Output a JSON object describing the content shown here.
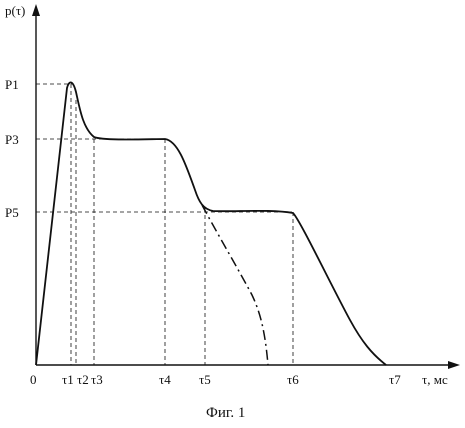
{
  "figure": {
    "y_axis_label": "p(τ)",
    "x_axis_label": "τ, мс",
    "origin_label": "0",
    "caption": "Фиг. 1"
  },
  "chart_data": {
    "type": "line",
    "title": "",
    "xlabel": "τ, мс",
    "ylabel": "p(τ)",
    "grid": false,
    "x_tick_labels": [
      "τ1",
      "τ2",
      "τ3",
      "τ4",
      "τ5",
      "τ6",
      "τ7"
    ],
    "y_tick_labels": [
      "P1",
      "P3",
      "P5"
    ],
    "series": [
      {
        "style": "solid",
        "x": [
          0,
          34,
          38,
          40,
          44,
          60,
          130,
          165,
          170,
          220,
          257,
          295,
          348
        ],
        "y": [
          0,
          280,
          265,
          246,
          235,
          228,
          225,
          158,
          154,
          154,
          148,
          60,
          0
        ]
      },
      {
        "style": "dash-dot",
        "x": [
          170,
          190,
          215,
          230,
          235
        ],
        "y": [
          154,
          115,
          70,
          30,
          0
        ]
      }
    ],
    "guide_lines": "dashed"
  },
  "colors": {
    "ink": "#111111",
    "background": "#ffffff"
  }
}
